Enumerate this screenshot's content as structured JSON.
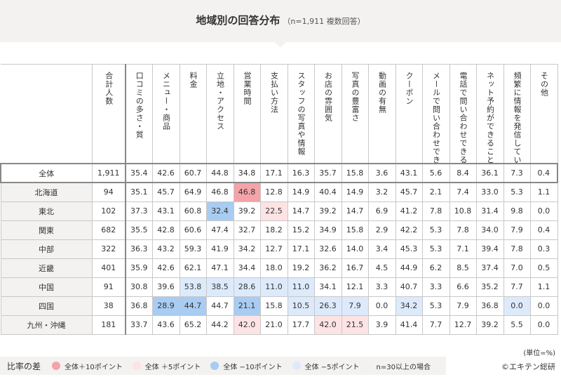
{
  "title": "地域別の回答分布",
  "subtitle": "（n=1,911 複数回答）",
  "colors": {
    "plus10": "#f4a3a8",
    "plus5": "#fde3e4",
    "minus10": "#a8ccf2",
    "minus5": "#dceafb"
  },
  "unit_note": "(単位=%)",
  "legend": {
    "title": "比率の差",
    "items": [
      {
        "label": "全体＋10ポイント",
        "key": "plus10"
      },
      {
        "label": "全体 ＋5ポイント",
        "key": "plus5"
      },
      {
        "label": "全体 −10ポイント",
        "key": "minus10"
      },
      {
        "label": "全体 −5ポイント",
        "key": "minus5"
      }
    ],
    "note": "n=30以上の場合"
  },
  "copyright": "©エキテン総研",
  "chart_data": {
    "type": "table",
    "columns": [
      "合計人数",
      "口コミの多さ・質",
      "メニュー・商品",
      "料金",
      "立地・アクセス",
      "営業時間",
      "支払い方法",
      "スタッフの写真や情報",
      "お店の雰囲気",
      "写真の豊富さ",
      "動画の有無",
      "クーポン",
      "メールで問い合わせできること",
      "電話で問い合わせできること",
      "ネット予約ができること",
      "頻繁に情報を発信していること",
      "その他"
    ],
    "rows": [
      {
        "label": "全体",
        "values": [
          "1,911",
          "35.4",
          "42.6",
          "60.7",
          "44.8",
          "34.8",
          "17.1",
          "16.3",
          "35.7",
          "15.8",
          "3.6",
          "43.1",
          "5.6",
          "8.4",
          "36.1",
          "7.3",
          "0.4"
        ],
        "highlights": {}
      },
      {
        "label": "北海道",
        "values": [
          "94",
          "35.1",
          "45.7",
          "64.9",
          "46.8",
          "46.8",
          "12.8",
          "14.9",
          "40.4",
          "14.9",
          "3.2",
          "45.7",
          "2.1",
          "7.4",
          "33.0",
          "5.3",
          "1.1"
        ],
        "highlights": {
          "5": "plus10"
        }
      },
      {
        "label": "東北",
        "values": [
          "102",
          "37.3",
          "43.1",
          "60.8",
          "32.4",
          "39.2",
          "22.5",
          "14.7",
          "39.2",
          "14.7",
          "6.9",
          "41.2",
          "7.8",
          "10.8",
          "31.4",
          "9.8",
          "0.0"
        ],
        "highlights": {
          "4": "minus10",
          "6": "plus5"
        }
      },
      {
        "label": "関東",
        "values": [
          "682",
          "35.5",
          "42.8",
          "60.6",
          "47.4",
          "32.7",
          "18.2",
          "15.2",
          "34.9",
          "15.8",
          "2.9",
          "42.2",
          "5.3",
          "7.8",
          "34.0",
          "7.9",
          "0.4"
        ],
        "highlights": {}
      },
      {
        "label": "中部",
        "values": [
          "322",
          "36.3",
          "43.2",
          "59.3",
          "41.9",
          "34.2",
          "12.7",
          "17.1",
          "32.6",
          "14.0",
          "3.4",
          "45.3",
          "5.3",
          "7.1",
          "39.4",
          "7.8",
          "0.3"
        ],
        "highlights": {}
      },
      {
        "label": "近畿",
        "values": [
          "401",
          "35.9",
          "42.6",
          "62.1",
          "47.1",
          "34.4",
          "18.0",
          "19.2",
          "36.2",
          "16.7",
          "4.5",
          "44.9",
          "6.2",
          "8.5",
          "37.4",
          "7.0",
          "0.5"
        ],
        "highlights": {}
      },
      {
        "label": "中国",
        "values": [
          "91",
          "30.8",
          "39.6",
          "53.8",
          "38.5",
          "28.6",
          "11.0",
          "11.0",
          "34.1",
          "12.1",
          "3.3",
          "40.7",
          "3.3",
          "6.6",
          "35.2",
          "7.7",
          "1.1"
        ],
        "highlights": {
          "3": "minus5",
          "4": "minus5",
          "5": "minus5",
          "6": "minus5",
          "7": "minus5"
        }
      },
      {
        "label": "四国",
        "values": [
          "38",
          "36.8",
          "28.9",
          "44.7",
          "44.7",
          "21.1",
          "15.8",
          "10.5",
          "26.3",
          "7.9",
          "0.0",
          "34.2",
          "5.3",
          "7.9",
          "36.8",
          "0.0",
          "0.0"
        ],
        "highlights": {
          "2": "minus10",
          "3": "minus10",
          "5": "minus10",
          "7": "minus5",
          "8": "minus5",
          "9": "minus5",
          "11": "minus5",
          "15": "minus5"
        }
      },
      {
        "label": "九州・沖縄",
        "values": [
          "181",
          "33.7",
          "43.6",
          "65.2",
          "44.2",
          "42.0",
          "21.0",
          "17.7",
          "42.0",
          "21.5",
          "3.9",
          "41.4",
          "7.7",
          "12.7",
          "39.2",
          "5.5",
          "0.0"
        ],
        "highlights": {
          "5": "plus5",
          "8": "plus5",
          "9": "plus5"
        }
      }
    ]
  }
}
